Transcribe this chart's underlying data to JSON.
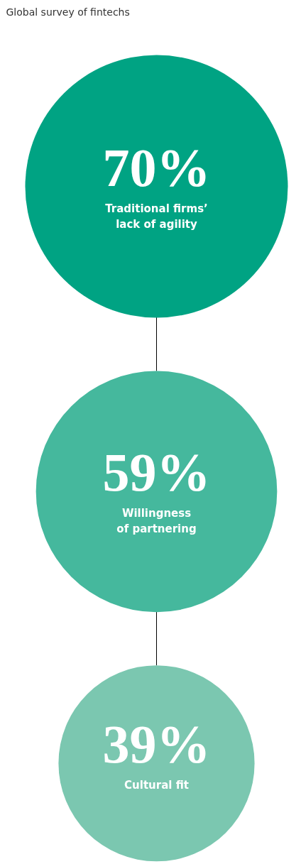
{
  "chart_data": {
    "type": "other",
    "title": "Global survey of fintechs",
    "categories": [
      "Traditional firms’\nlack of agility",
      "Willingness\nof partnering",
      "Cultural fit"
    ],
    "values": [
      70,
      59,
      39
    ],
    "value_labels": [
      "70%",
      "59%",
      "39%"
    ],
    "colors": [
      "#00a383",
      "#45b89d",
      "#7bc7b0"
    ]
  }
}
